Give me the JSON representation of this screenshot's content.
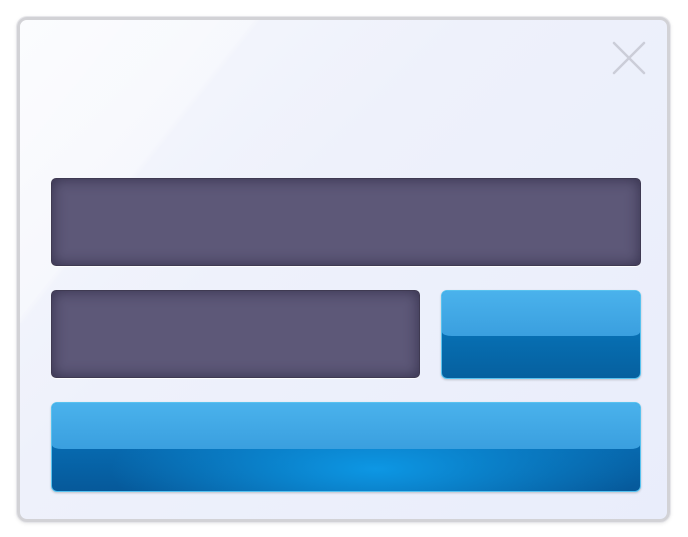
{
  "dialog": {
    "close_icon": "close-icon",
    "fields": [
      {
        "value": ""
      },
      {
        "value": ""
      }
    ],
    "buttons": [
      {
        "label": ""
      },
      {
        "label": ""
      }
    ]
  },
  "colors": {
    "field_fill": "#5d5878",
    "button_blue_top": "#4ab2ec",
    "button_blue_bottom": "#05609f",
    "dialog_bg": "#eef1fb"
  }
}
